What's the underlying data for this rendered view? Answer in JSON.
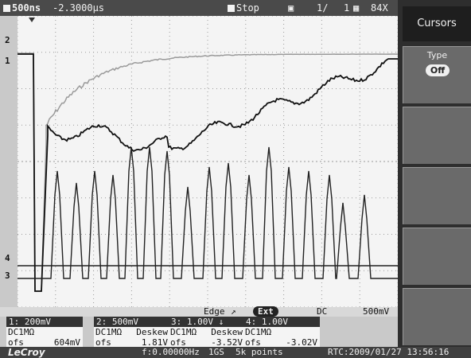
{
  "top_bar": {
    "timebase": "500ns",
    "delay": "-2.3000µs",
    "run_state": "Stop",
    "acq_count": "1/",
    "acq_total": "1",
    "zoom": "84X"
  },
  "channel_markers": [
    "2",
    "1",
    "4",
    "3"
  ],
  "menu": {
    "title": "Cursors",
    "type_label": "Type",
    "type_value": "Off"
  },
  "trigger": {
    "mode": "Edge",
    "slope_symbol": "↗",
    "source": "Ext",
    "coupling": "DC",
    "level": "500mV"
  },
  "channels": [
    {
      "header": "1: 200mV",
      "coupling": "DC1MΩ",
      "deskew": "",
      "ofs_label": "ofs",
      "ofs_value": "604mV"
    },
    {
      "header": "2: 500mV",
      "coupling": "DC1MΩ",
      "deskew": "Deskew",
      "ofs_label": "ofs",
      "ofs_value": "1.81V"
    },
    {
      "header": "3: 1.00V ↓",
      "coupling": "DC1MΩ",
      "deskew": "Deskew",
      "ofs_label": "ofs",
      "ofs_value": "-3.52V"
    },
    {
      "header": "4: 1.00V",
      "coupling": "DC1MΩ",
      "deskew": "",
      "ofs_label": "ofs",
      "ofs_value": "-3.02V"
    }
  ],
  "bottom_bar": {
    "brand": "LeCroy",
    "freq": "f:0.00000Hz",
    "sample_rate": "1GS",
    "points": "5k points",
    "rtc": "RTC:2009/01/27 13:56:16"
  },
  "colors": {
    "grid": "#9a9a9a",
    "trace_ch1": "#111111",
    "trace_ch2": "#9a9a9a",
    "trace_ch3": "#222222",
    "trace_ch4": "#555555",
    "menu_bg": "#2e2e2e"
  }
}
